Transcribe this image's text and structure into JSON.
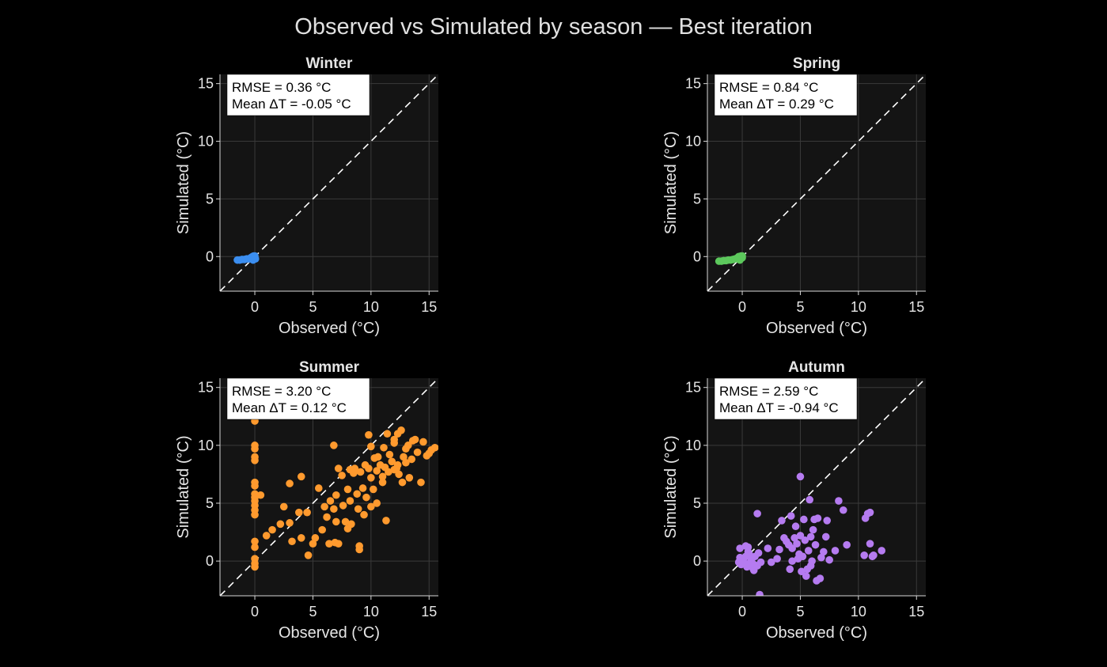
{
  "title": "Observed vs Simulated by season — Best iteration",
  "colors": {
    "background": "#000000",
    "axes_bg": "#141414",
    "grid": "#3a3a3a",
    "text": "#e6e6e6",
    "identity_line": "#ffffff"
  },
  "chart_data": [
    {
      "type": "scatter",
      "title": "Winter",
      "xlabel": "Observed (°C)",
      "ylabel": "Simulated (°C)",
      "xlim": [
        -3,
        15.8
      ],
      "ylim": [
        -3,
        15.8
      ],
      "xticks": [
        0,
        5,
        10,
        15
      ],
      "yticks": [
        0,
        5,
        10,
        15
      ],
      "grid": true,
      "identity_line": "dashed",
      "stats": [
        "RMSE = 0.36 °C",
        "Mean ΔT = -0.05 °C"
      ],
      "color": "#3b8ef0",
      "points": [
        [
          -1.5,
          -0.3
        ],
        [
          -1.3,
          -0.3
        ],
        [
          -1.1,
          -0.25
        ],
        [
          -0.9,
          -0.25
        ],
        [
          -0.7,
          -0.2
        ],
        [
          -0.5,
          -0.2
        ],
        [
          -0.35,
          -0.1
        ],
        [
          -0.2,
          0
        ],
        [
          -0.1,
          0.05
        ],
        [
          0,
          -0.1
        ],
        [
          0.05,
          -0.2
        ],
        [
          -0.15,
          -0.3
        ],
        [
          0,
          0.05
        ]
      ]
    },
    {
      "type": "scatter",
      "title": "Spring",
      "xlabel": "Observed (°C)",
      "ylabel": "Simulated (°C)",
      "xlim": [
        -3,
        15.8
      ],
      "ylim": [
        -3,
        15.8
      ],
      "xticks": [
        0,
        5,
        10,
        15
      ],
      "yticks": [
        0,
        5,
        10,
        15
      ],
      "grid": true,
      "identity_line": "dashed",
      "stats": [
        "RMSE = 0.84 °C",
        "Mean ΔT = 0.29 °C"
      ],
      "color": "#5cc85c",
      "points": [
        [
          -2.0,
          -0.4
        ],
        [
          -1.8,
          -0.4
        ],
        [
          -1.6,
          -0.35
        ],
        [
          -1.4,
          -0.35
        ],
        [
          -1.2,
          -0.3
        ],
        [
          -1.0,
          -0.3
        ],
        [
          -0.8,
          -0.25
        ],
        [
          -0.6,
          -0.2
        ],
        [
          -0.4,
          -0.1
        ],
        [
          -0.3,
          0
        ],
        [
          -0.1,
          0.05
        ],
        [
          0,
          -0.1
        ],
        [
          0,
          0.05
        ],
        [
          -0.2,
          -0.3
        ]
      ]
    },
    {
      "type": "scatter",
      "title": "Summer",
      "xlabel": "Observed (°C)",
      "ylabel": "Simulated (°C)",
      "xlim": [
        -3,
        15.8
      ],
      "ylim": [
        -3,
        15.8
      ],
      "xticks": [
        0,
        5,
        10,
        15
      ],
      "yticks": [
        0,
        5,
        10,
        15
      ],
      "grid": true,
      "identity_line": "dashed",
      "stats": [
        "RMSE = 3.20 °C",
        "Mean ΔT = 0.12 °C"
      ],
      "color": "#ff9a2e",
      "points": [
        [
          0,
          12.1
        ],
        [
          0,
          10.0
        ],
        [
          0,
          9.7
        ],
        [
          0,
          9.0
        ],
        [
          0,
          8.7
        ],
        [
          0,
          6.8
        ],
        [
          0,
          6.5
        ],
        [
          0,
          5.8
        ],
        [
          0,
          5.5
        ],
        [
          0,
          5.2
        ],
        [
          0,
          4.8
        ],
        [
          0,
          4.4
        ],
        [
          0,
          4.0
        ],
        [
          0,
          1.7
        ],
        [
          0,
          1.2
        ],
        [
          0,
          0.2
        ],
        [
          0,
          -0.2
        ],
        [
          0,
          -0.5
        ],
        [
          0.5,
          5.7
        ],
        [
          1.0,
          2.2
        ],
        [
          1.5,
          2.7
        ],
        [
          2.2,
          3.2
        ],
        [
          2.5,
          4.7
        ],
        [
          3.0,
          6.7
        ],
        [
          3.0,
          3.3
        ],
        [
          3.2,
          1.7
        ],
        [
          3.8,
          4.2
        ],
        [
          4.0,
          7.3
        ],
        [
          4.0,
          2.0
        ],
        [
          4.5,
          4.2
        ],
        [
          4.6,
          0.5
        ],
        [
          5.0,
          1.5
        ],
        [
          5.2,
          2.0
        ],
        [
          5.5,
          6.3
        ],
        [
          5.8,
          2.7
        ],
        [
          6.0,
          4.7
        ],
        [
          6.2,
          3.8
        ],
        [
          6.4,
          1.5
        ],
        [
          6.5,
          5.2
        ],
        [
          6.8,
          10.0
        ],
        [
          6.8,
          4.5
        ],
        [
          6.9,
          1.6
        ],
        [
          7.0,
          5.7
        ],
        [
          7.0,
          3.4
        ],
        [
          7.2,
          1.5
        ],
        [
          7.2,
          8.0
        ],
        [
          7.5,
          7.4
        ],
        [
          7.6,
          4.8
        ],
        [
          7.8,
          3.4
        ],
        [
          8.0,
          2.8
        ],
        [
          8.0,
          6.2
        ],
        [
          8.2,
          5.2
        ],
        [
          8.3,
          3.2
        ],
        [
          8.5,
          7.6
        ],
        [
          8.6,
          8.0
        ],
        [
          8.8,
          5.8
        ],
        [
          8.9,
          4.5
        ],
        [
          9.0,
          1.3
        ],
        [
          9.0,
          1.0
        ],
        [
          9.1,
          7.7
        ],
        [
          9.3,
          6.3
        ],
        [
          9.4,
          4.0
        ],
        [
          9.5,
          8.3
        ],
        [
          9.6,
          5.5
        ],
        [
          9.8,
          10.9
        ],
        [
          9.8,
          8.0
        ],
        [
          10.0,
          4.7
        ],
        [
          10.0,
          7.2
        ],
        [
          10.2,
          6.2
        ],
        [
          10.3,
          8.9
        ],
        [
          10.5,
          5.0
        ],
        [
          10.5,
          7.8
        ],
        [
          10.6,
          9.0
        ],
        [
          10.8,
          8.3
        ],
        [
          11.0,
          7.3
        ],
        [
          11.0,
          6.8
        ],
        [
          11.1,
          9.8
        ],
        [
          11.2,
          8.1
        ],
        [
          11.3,
          3.5
        ],
        [
          11.4,
          11.0
        ],
        [
          11.5,
          7.7
        ],
        [
          11.6,
          9.2
        ],
        [
          11.8,
          8.6
        ],
        [
          12.0,
          10.5
        ],
        [
          12.0,
          7.9
        ],
        [
          12.2,
          8.0
        ],
        [
          12.3,
          8.3
        ],
        [
          12.4,
          7.5
        ],
        [
          12.6,
          11.3
        ],
        [
          12.7,
          6.8
        ],
        [
          12.8,
          9.0
        ],
        [
          13.0,
          8.5
        ],
        [
          13.0,
          9.7
        ],
        [
          13.2,
          10.0
        ],
        [
          13.3,
          7.2
        ],
        [
          13.5,
          8.8
        ],
        [
          13.6,
          10.4
        ],
        [
          13.8,
          10.5
        ],
        [
          14.0,
          9.4
        ],
        [
          14.3,
          6.8
        ],
        [
          14.5,
          10.3
        ],
        [
          14.8,
          9.1
        ],
        [
          15.0,
          9.3
        ],
        [
          15.2,
          9.6
        ],
        [
          15.5,
          9.8
        ],
        [
          12.3,
          11.0
        ],
        [
          10.0,
          9.9
        ],
        [
          8.2,
          7.9
        ],
        [
          12.0,
          10.2
        ]
      ]
    },
    {
      "type": "scatter",
      "title": "Autumn",
      "xlabel": "Observed (°C)",
      "ylabel": "Simulated (°C)",
      "xlim": [
        -3,
        15.8
      ],
      "ylim": [
        -3,
        15.8
      ],
      "xticks": [
        0,
        5,
        10,
        15
      ],
      "yticks": [
        0,
        5,
        10,
        15
      ],
      "grid": true,
      "identity_line": "dashed",
      "stats": [
        "RMSE = 2.59 °C",
        "Mean ΔT = -0.94 °C"
      ],
      "color": "#b57bf0",
      "points": [
        [
          -0.3,
          -0.1
        ],
        [
          -0.2,
          0.3
        ],
        [
          -0.1,
          -0.3
        ],
        [
          0,
          0
        ],
        [
          0.1,
          0.2
        ],
        [
          0.2,
          -0.2
        ],
        [
          0.3,
          0.4
        ],
        [
          0.4,
          -0.5
        ],
        [
          0.5,
          1.2
        ],
        [
          0.6,
          0.6
        ],
        [
          0.7,
          -0.1
        ],
        [
          0.8,
          0.1
        ],
        [
          0.9,
          -0.6
        ],
        [
          1.0,
          -0.8
        ],
        [
          1.0,
          -0.3
        ],
        [
          1.1,
          0.4
        ],
        [
          1.3,
          -0.4
        ],
        [
          1.3,
          4.1
        ],
        [
          1.4,
          0.7
        ],
        [
          1.5,
          -2.9
        ],
        [
          1.6,
          -0.1
        ],
        [
          -0.2,
          1.1
        ],
        [
          0.3,
          1.3
        ],
        [
          0.5,
          0.8
        ],
        [
          2.2,
          1.1
        ],
        [
          2.5,
          -0.1
        ],
        [
          3.0,
          0.2
        ],
        [
          3.2,
          1.0
        ],
        [
          3.4,
          3.5
        ],
        [
          3.6,
          2.0
        ],
        [
          3.8,
          1.7
        ],
        [
          4.0,
          1.4
        ],
        [
          4.1,
          -0.7
        ],
        [
          4.2,
          3.9
        ],
        [
          4.3,
          1.1
        ],
        [
          4.5,
          2.0
        ],
        [
          4.6,
          3.0
        ],
        [
          4.7,
          1.5
        ],
        [
          4.8,
          0.2
        ],
        [
          4.9,
          0.6
        ],
        [
          5.0,
          2.2
        ],
        [
          5.0,
          7.3
        ],
        [
          5.1,
          -0.9
        ],
        [
          5.2,
          0.4
        ],
        [
          5.3,
          3.6
        ],
        [
          5.4,
          1.8
        ],
        [
          5.5,
          -1.3
        ],
        [
          5.6,
          -0.7
        ],
        [
          5.7,
          0.9
        ],
        [
          5.8,
          5.3
        ],
        [
          5.9,
          2.1
        ],
        [
          6.0,
          0.0
        ],
        [
          6.2,
          3.6
        ],
        [
          6.3,
          1.4
        ],
        [
          6.4,
          -1.7
        ],
        [
          6.5,
          3.7
        ],
        [
          6.7,
          -1.5
        ],
        [
          6.8,
          0.3
        ],
        [
          7.0,
          0.8
        ],
        [
          7.2,
          2.1
        ],
        [
          7.3,
          3.5
        ],
        [
          7.5,
          0.1
        ],
        [
          8.0,
          0.9
        ],
        [
          8.3,
          5.2
        ],
        [
          8.7,
          4.4
        ],
        [
          9.0,
          1.4
        ],
        [
          10.5,
          0.5
        ],
        [
          10.6,
          3.7
        ],
        [
          10.8,
          4.1
        ],
        [
          11.0,
          4.2
        ],
        [
          11.0,
          1.5
        ],
        [
          11.2,
          0.4
        ],
        [
          11.3,
          0.5
        ],
        [
          12.0,
          0.9
        ],
        [
          6.1,
          2.7
        ],
        [
          4.3,
          0.0
        ],
        [
          5.9,
          -0.4
        ]
      ]
    }
  ]
}
